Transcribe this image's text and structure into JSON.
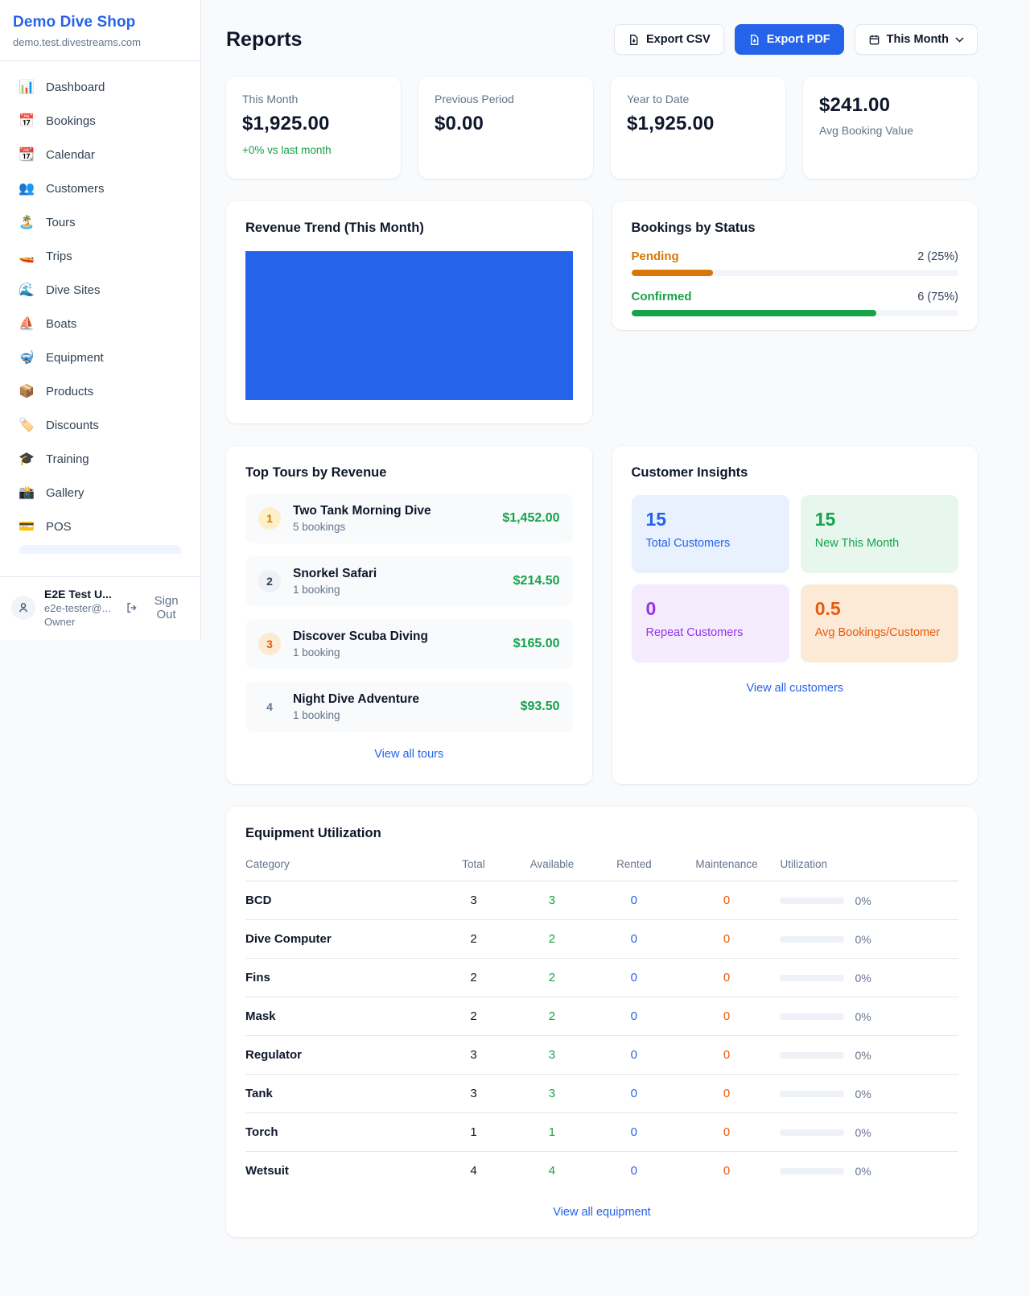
{
  "sidebar": {
    "shop_name": "Demo Dive Shop",
    "shop_domain": "demo.test.divestreams.com",
    "items": [
      {
        "icon": "📊",
        "label": "Dashboard"
      },
      {
        "icon": "📅",
        "label": "Bookings"
      },
      {
        "icon": "📆",
        "label": "Calendar"
      },
      {
        "icon": "👥",
        "label": "Customers"
      },
      {
        "icon": "🏝️",
        "label": "Tours"
      },
      {
        "icon": "🚤",
        "label": "Trips"
      },
      {
        "icon": "🌊",
        "label": "Dive Sites"
      },
      {
        "icon": "⛵",
        "label": "Boats"
      },
      {
        "icon": "🤿",
        "label": "Equipment"
      },
      {
        "icon": "📦",
        "label": "Products"
      },
      {
        "icon": "🏷️",
        "label": "Discounts"
      },
      {
        "icon": "🎓",
        "label": "Training"
      },
      {
        "icon": "📸",
        "label": "Gallery"
      },
      {
        "icon": "💳",
        "label": "POS"
      }
    ],
    "user": {
      "name": "E2E Test U...",
      "email": "e2e-tester@...",
      "role": "Owner",
      "sign_out_label": "Sign Out"
    }
  },
  "header": {
    "title": "Reports",
    "export_csv_label": "Export CSV",
    "export_pdf_label": "Export PDF",
    "period_label": "This Month"
  },
  "stats": [
    {
      "label": "This Month",
      "value": "$1,925.00",
      "delta": "+0% vs last month"
    },
    {
      "label": "Previous Period",
      "value": "$0.00"
    },
    {
      "label": "Year to Date",
      "value": "$1,925.00"
    },
    {
      "label": "Avg Booking Value",
      "value": "$241.00"
    }
  ],
  "revenue_trend": {
    "title": "Revenue Trend (This Month)"
  },
  "bookings_by_status": {
    "title": "Bookings by Status",
    "rows": [
      {
        "label": "Pending",
        "count": "2 (25%)",
        "percent": 25,
        "color": "#d97706"
      },
      {
        "label": "Confirmed",
        "count": "6 (75%)",
        "percent": 75,
        "color": "#16a34a"
      }
    ]
  },
  "chart_data": [
    {
      "type": "area",
      "title": "Revenue Trend (This Month)",
      "color": "#2563eb"
    },
    {
      "type": "bar",
      "title": "Bookings by Status",
      "categories": [
        "Pending",
        "Confirmed"
      ],
      "values": [
        2,
        6
      ],
      "labels": [
        "2 (25%)",
        "6 (75%)"
      ]
    }
  ],
  "top_tours": {
    "title": "Top Tours by Revenue",
    "view_all": "View all tours",
    "rows": [
      {
        "rank": "1",
        "name": "Two Tank Morning Dive",
        "bookings": "5 bookings",
        "amount": "$1,452.00"
      },
      {
        "rank": "2",
        "name": "Snorkel Safari",
        "bookings": "1 booking",
        "amount": "$214.50"
      },
      {
        "rank": "3",
        "name": "Discover Scuba Diving",
        "bookings": "1 booking",
        "amount": "$165.00"
      },
      {
        "rank": "4",
        "name": "Night Dive Adventure",
        "bookings": "1 booking",
        "amount": "$93.50"
      }
    ]
  },
  "customer_insights": {
    "title": "Customer Insights",
    "view_all": "View all customers",
    "boxes": [
      {
        "value": "15",
        "label": "Total Customers"
      },
      {
        "value": "15",
        "label": "New This Month"
      },
      {
        "value": "0",
        "label": "Repeat Customers"
      },
      {
        "value": "0.5",
        "label": "Avg Bookings/Customer"
      }
    ]
  },
  "equipment": {
    "title": "Equipment Utilization",
    "view_all": "View all equipment",
    "columns": [
      "Category",
      "Total",
      "Available",
      "Rented",
      "Maintenance",
      "Utilization"
    ],
    "rows": [
      {
        "category": "BCD",
        "total": "3",
        "available": "3",
        "rented": "0",
        "maintenance": "0",
        "utilization": "0%"
      },
      {
        "category": "Dive Computer",
        "total": "2",
        "available": "2",
        "rented": "0",
        "maintenance": "0",
        "utilization": "0%"
      },
      {
        "category": "Fins",
        "total": "2",
        "available": "2",
        "rented": "0",
        "maintenance": "0",
        "utilization": "0%"
      },
      {
        "category": "Mask",
        "total": "2",
        "available": "2",
        "rented": "0",
        "maintenance": "0",
        "utilization": "0%"
      },
      {
        "category": "Regulator",
        "total": "3",
        "available": "3",
        "rented": "0",
        "maintenance": "0",
        "utilization": "0%"
      },
      {
        "category": "Tank",
        "total": "3",
        "available": "3",
        "rented": "0",
        "maintenance": "0",
        "utilization": "0%"
      },
      {
        "category": "Torch",
        "total": "1",
        "available": "1",
        "rented": "0",
        "maintenance": "0",
        "utilization": "0%"
      },
      {
        "category": "Wetsuit",
        "total": "4",
        "available": "4",
        "rented": "0",
        "maintenance": "0",
        "utilization": "0%"
      }
    ]
  },
  "colors": {
    "accent": "#2563eb",
    "success": "#16a34a",
    "pending_orange": "#d97706",
    "maintenance_orange": "#ea580c",
    "purple": "#9333ea"
  }
}
